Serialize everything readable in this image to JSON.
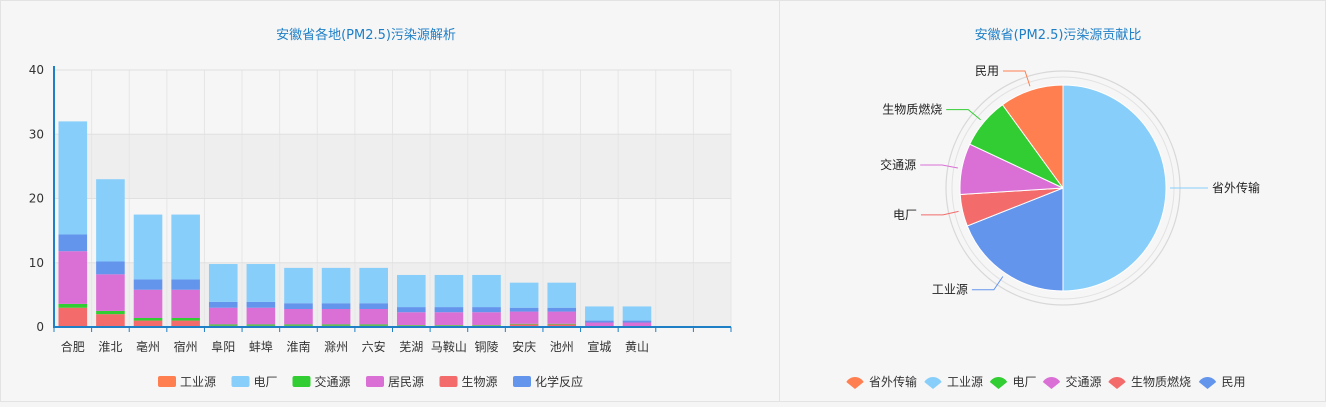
{
  "chart_data": [
    {
      "type": "bar",
      "stacked": true,
      "title": "安徽省各地(PM2.5)污染源解析",
      "categories": [
        "合肥",
        "淮北",
        "亳州",
        "宿州",
        "阜阳",
        "蚌埠",
        "淮南",
        "滁州",
        "六安",
        "芜湖",
        "马鞍山",
        "铜陵",
        "安庆",
        "池州",
        "宣城",
        "黄山",
        "",
        ""
      ],
      "ylim": [
        0,
        40
      ],
      "yticks": [
        0,
        10,
        20,
        30,
        40
      ],
      "grid": "banded",
      "legend_position": "bottom",
      "series": [
        {
          "name": "工业源",
          "color": "#ff7f50",
          "values": [
            0,
            0,
            0,
            0,
            0,
            0,
            0,
            0,
            0,
            0,
            0,
            0,
            0,
            0,
            0,
            0,
            0,
            0
          ]
        },
        {
          "name": "生物源",
          "color": "#f36b6b",
          "values": [
            3,
            2,
            1,
            1,
            0.2,
            0.2,
            0.2,
            0.2,
            0.2,
            0.2,
            0.2,
            0.2,
            0.4,
            0.4,
            0.1,
            0.1,
            0,
            0
          ]
        },
        {
          "name": "交通源",
          "color": "#32cd32",
          "values": [
            0.6,
            0.5,
            0.4,
            0.4,
            0.2,
            0.2,
            0.2,
            0.2,
            0.2,
            0.1,
            0.1,
            0.1,
            0.1,
            0.1,
            0,
            0,
            0,
            0
          ]
        },
        {
          "name": "居民源",
          "color": "#da70d6",
          "values": [
            8.2,
            5.7,
            4.4,
            4.4,
            2.6,
            2.6,
            2.4,
            2.4,
            2.4,
            2.0,
            2.0,
            2.0,
            1.9,
            1.9,
            0.6,
            0.6,
            0,
            0
          ]
        },
        {
          "name": "化学反应",
          "color": "#6495ed",
          "values": [
            2.6,
            2.0,
            1.6,
            1.6,
            0.9,
            0.9,
            0.9,
            0.9,
            0.9,
            0.8,
            0.8,
            0.8,
            0.6,
            0.6,
            0.3,
            0.3,
            0,
            0
          ]
        },
        {
          "name": "电厂",
          "color": "#87cefa",
          "values": [
            17.6,
            12.8,
            10.1,
            10.1,
            5.9,
            5.9,
            5.5,
            5.5,
            5.5,
            5.0,
            5.0,
            5.0,
            3.9,
            3.9,
            2.2,
            2.2,
            0,
            0
          ]
        }
      ],
      "legend": [
        {
          "name": "工业源",
          "color": "#ff7f50"
        },
        {
          "name": "电厂",
          "color": "#87cefa"
        },
        {
          "name": "交通源",
          "color": "#32cd32"
        },
        {
          "name": "居民源",
          "color": "#da70d6"
        },
        {
          "name": "生物源",
          "color": "#f36b6b"
        },
        {
          "name": "化学反应",
          "color": "#6495ed"
        }
      ]
    },
    {
      "type": "pie",
      "title": "安徽省(PM2.5)污染源贡献比",
      "legend_position": "bottom",
      "slices": [
        {
          "name": "省外传输",
          "value": 50,
          "color": "#87cefa"
        },
        {
          "name": "工业源",
          "value": 19,
          "color": "#6495ed"
        },
        {
          "name": "电厂",
          "value": 5,
          "color": "#f36b6b"
        },
        {
          "name": "交通源",
          "value": 8,
          "color": "#da70d6"
        },
        {
          "name": "生物质燃烧",
          "value": 8,
          "color": "#32cd32"
        },
        {
          "name": "民用",
          "value": 10,
          "color": "#ff7f50"
        }
      ],
      "legend": [
        {
          "name": "省外传输",
          "color": "#ff7f50"
        },
        {
          "name": "工业源",
          "color": "#87cefa"
        },
        {
          "name": "电厂",
          "color": "#32cd32"
        },
        {
          "name": "交通源",
          "color": "#da70d6"
        },
        {
          "name": "生物质燃烧",
          "color": "#f36b6b"
        },
        {
          "name": "民用",
          "color": "#6495ed"
        }
      ]
    }
  ]
}
